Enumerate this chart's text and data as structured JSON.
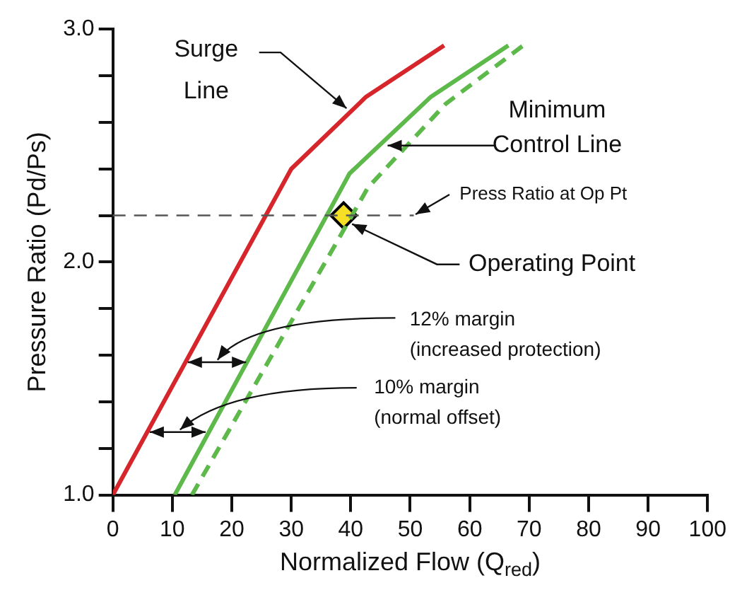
{
  "chart_data": {
    "type": "line",
    "xlabel": "Normalized Flow (Q$_{red}$)",
    "ylabel": "Pressure Ratio (Pd/Ps)",
    "xlim": [
      0,
      100
    ],
    "xticks": [
      0,
      10,
      20,
      30,
      40,
      50,
      60,
      70,
      80,
      90,
      100
    ],
    "ylim": [
      1,
      3
    ],
    "yticks": [
      {
        "value": 1,
        "label": "1.0"
      },
      {
        "value": 1.2,
        "label": null
      },
      {
        "value": 1.4,
        "label": null
      },
      {
        "value": 1.6,
        "label": null
      },
      {
        "value": 1.8,
        "label": null
      },
      {
        "value": 2,
        "label": "2.0"
      },
      {
        "value": 2.2,
        "label": null
      },
      {
        "value": 2.4,
        "label": null
      },
      {
        "value": 2.6,
        "label": null
      },
      {
        "value": 2.8,
        "label": null
      },
      {
        "value": 3,
        "label": "3.0"
      }
    ],
    "series": [
      {
        "color": "#d7262b",
        "line_style": "solid",
        "x": [
          0,
          30,
          42.6,
          55.7
        ],
        "values": [
          1.0,
          2.4,
          2.71,
          2.93
        ]
      },
      {
        "color": "#5cb94a",
        "line_style": "solid",
        "x": [
          10.4,
          39.8,
          53.5,
          66.5
        ],
        "values": [
          1.0,
          2.38,
          2.71,
          2.93
        ]
      },
      {
        "color": "#5cb94a",
        "line_style": "dashed",
        "x": [
          13.3,
          42.9,
          56,
          69
        ],
        "values": [
          1.0,
          2.32,
          2.68,
          2.93
        ]
      },
      {
        "type": "scatter",
        "color": "#f5e025",
        "marker": "diamond",
        "x": [
          38.8
        ],
        "values": [
          2.2
        ]
      }
    ],
    "ref_lines": [
      {
        "axis": "y",
        "value": 2.2,
        "label": "Press Ratio at Op Pt",
        "color": "#555555",
        "line_style": "dashed"
      }
    ],
    "annotations": [
      {
        "text": "Surge\nLine",
        "x": 39.3,
        "y": 2.66
      },
      {
        "text": "Minimum\nControl Line",
        "x": 46.2,
        "y": 2.5
      },
      {
        "text": "Operating Point",
        "x": 38.8,
        "y": 2.2
      },
      "12% margin\n(increased protection)",
      "10% margin\n(normal offset)"
    ],
    "grid": false,
    "legend": false
  }
}
